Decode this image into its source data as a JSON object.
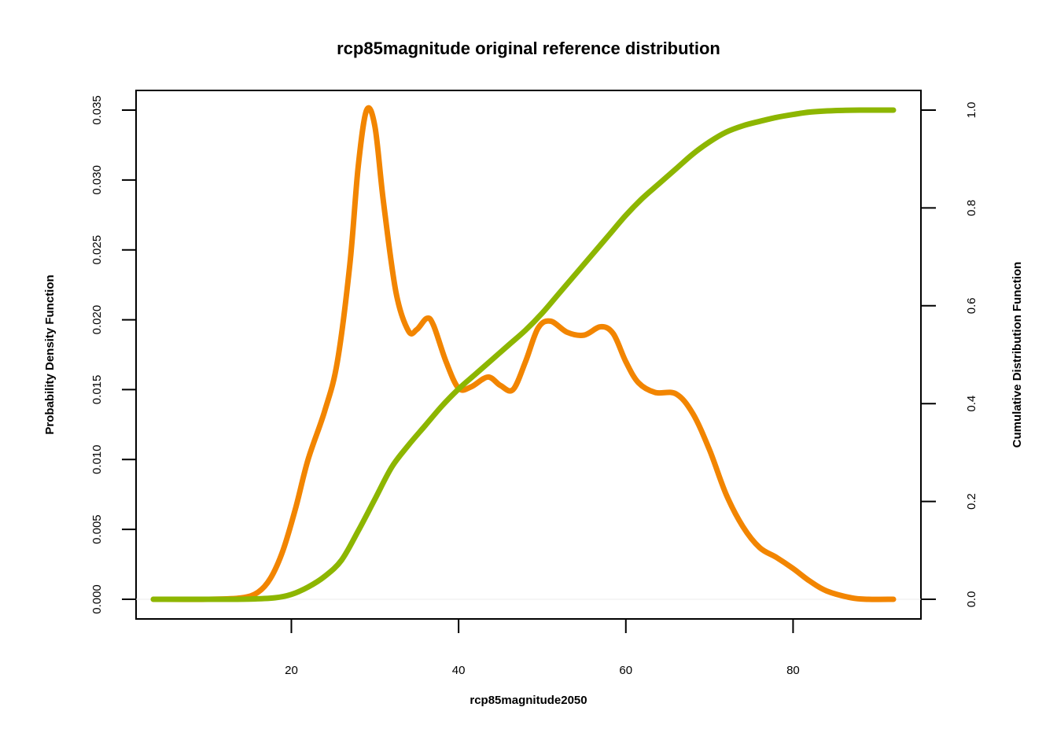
{
  "chart_data": {
    "type": "line",
    "title": "rcp85magnitude original reference distribution",
    "xlabel": "rcp85magnitude2050",
    "ylabel_left": "Probability Density Function",
    "ylabel_right": "Cumulative Distribution Function",
    "xlim": [
      5,
      92
    ],
    "ylim_left": [
      0,
      0.035
    ],
    "ylim_right": [
      0,
      1
    ],
    "x_ticks": [
      20,
      40,
      60,
      80
    ],
    "left_ticks": [
      "0.000",
      "0.005",
      "0.010",
      "0.015",
      "0.020",
      "0.025",
      "0.030",
      "0.035"
    ],
    "right_ticks": [
      "0.0",
      "0.2",
      "0.4",
      "0.6",
      "0.8",
      "1.0"
    ],
    "grid": false,
    "series": [
      {
        "name": "Probability Density Function",
        "axis": "left",
        "color": "#F28500",
        "points": [
          [
            3.5,
            0.0
          ],
          [
            10,
            0.0
          ],
          [
            14,
            0.0001
          ],
          [
            16,
            0.0005
          ],
          [
            17.5,
            0.0015
          ],
          [
            19,
            0.0035
          ],
          [
            20.5,
            0.0065
          ],
          [
            22,
            0.01
          ],
          [
            24,
            0.0135
          ],
          [
            25.5,
            0.017
          ],
          [
            27,
            0.024
          ],
          [
            28,
            0.031
          ],
          [
            29,
            0.035
          ],
          [
            30,
            0.0338
          ],
          [
            31,
            0.0285
          ],
          [
            32.5,
            0.022
          ],
          [
            34,
            0.0192
          ],
          [
            35,
            0.0193
          ],
          [
            36.2,
            0.0201
          ],
          [
            37,
            0.0196
          ],
          [
            38.5,
            0.017
          ],
          [
            40,
            0.0151
          ],
          [
            41.5,
            0.0152
          ],
          [
            43.5,
            0.0159
          ],
          [
            45,
            0.0153
          ],
          [
            46.5,
            0.015
          ],
          [
            48,
            0.017
          ],
          [
            49.5,
            0.0194
          ],
          [
            51,
            0.0199
          ],
          [
            53,
            0.0191
          ],
          [
            55,
            0.0189
          ],
          [
            57,
            0.0195
          ],
          [
            58.5,
            0.019
          ],
          [
            60,
            0.017
          ],
          [
            61.5,
            0.0155
          ],
          [
            63.5,
            0.0148
          ],
          [
            66,
            0.0147
          ],
          [
            68,
            0.0133
          ],
          [
            70,
            0.0107
          ],
          [
            72,
            0.0075
          ],
          [
            74,
            0.0052
          ],
          [
            76,
            0.0037
          ],
          [
            78,
            0.003
          ],
          [
            80,
            0.0022
          ],
          [
            82,
            0.0013
          ],
          [
            84,
            0.0006
          ],
          [
            87,
            0.0001
          ],
          [
            89,
            0.0
          ],
          [
            92,
            0.0
          ]
        ]
      },
      {
        "name": "Cumulative Distribution Function",
        "axis": "right",
        "color": "#8DB600",
        "points": [
          [
            3.5,
            0.0
          ],
          [
            10,
            0.0
          ],
          [
            15,
            0.0005
          ],
          [
            18,
            0.003
          ],
          [
            20,
            0.01
          ],
          [
            22,
            0.025
          ],
          [
            24,
            0.047
          ],
          [
            26,
            0.08
          ],
          [
            28,
            0.14
          ],
          [
            30,
            0.205
          ],
          [
            32,
            0.27
          ],
          [
            34,
            0.315
          ],
          [
            36,
            0.355
          ],
          [
            38,
            0.395
          ],
          [
            40,
            0.43
          ],
          [
            42,
            0.46
          ],
          [
            44,
            0.49
          ],
          [
            46,
            0.52
          ],
          [
            48,
            0.55
          ],
          [
            50,
            0.585
          ],
          [
            52,
            0.625
          ],
          [
            54,
            0.665
          ],
          [
            56,
            0.705
          ],
          [
            58,
            0.745
          ],
          [
            60,
            0.785
          ],
          [
            62,
            0.82
          ],
          [
            64,
            0.85
          ],
          [
            66,
            0.88
          ],
          [
            68,
            0.91
          ],
          [
            70,
            0.935
          ],
          [
            72,
            0.955
          ],
          [
            74,
            0.968
          ],
          [
            76,
            0.977
          ],
          [
            78,
            0.985
          ],
          [
            80,
            0.991
          ],
          [
            82,
            0.996
          ],
          [
            85,
            0.999
          ],
          [
            88,
            1.0
          ],
          [
            92,
            1.0
          ]
        ]
      }
    ]
  }
}
